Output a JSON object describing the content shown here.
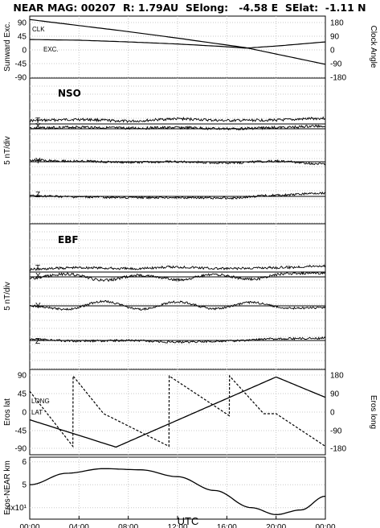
{
  "title": "NEAR MAG: 00207  R: 1.79AU  SElong:   -4.58 E  SElat:  -1.11 N",
  "x_axis": {
    "label": "UTC",
    "ticks": [
      "00:00",
      "04:00",
      "08:00",
      "12:00",
      "16:00",
      "20:00",
      "00:00"
    ]
  },
  "chart_data": [
    {
      "type": "line",
      "panel": "angles",
      "ylabel_left": "Sunward Exc.",
      "ylabel_right": "Clock Angle",
      "yticks_left": [
        "90",
        "45",
        "0",
        "-45",
        "-90"
      ],
      "yticks_right": [
        "180",
        "90",
        "0",
        "-90",
        "-180"
      ],
      "ylim_left": [
        -90,
        90
      ],
      "ylim_right": [
        -180,
        180
      ],
      "grid": true,
      "series": [
        {
          "name": "CLK",
          "axis": "right",
          "x": [
            0,
            4,
            8,
            12,
            16,
            17.5,
            20,
            24
          ],
          "values": [
            160,
            125,
            90,
            52,
            12,
            -3,
            -40,
            -100
          ]
        },
        {
          "name": "EXC.",
          "axis": "left",
          "x": [
            0,
            4,
            8,
            12,
            16,
            17.5,
            20,
            24
          ],
          "values": [
            22,
            20,
            15,
            9,
            1,
            -3,
            3,
            15
          ]
        }
      ]
    },
    {
      "type": "line",
      "panel": "NSO",
      "title": "NSO",
      "ylabel": "5 nT/div",
      "grid": true,
      "series": [
        {
          "name": "T",
          "x": [
            0,
            4,
            8,
            12,
            16,
            20,
            24
          ],
          "values": [
            0.6,
            0.8,
            0.5,
            0.9,
            0.6,
            0.7,
            1.0
          ]
        },
        {
          "name": "X",
          "x": [
            0,
            4,
            8,
            12,
            16,
            20,
            24
          ],
          "values": [
            0.1,
            0.3,
            0.1,
            0.2,
            0.0,
            0.2,
            0.5
          ]
        },
        {
          "name": "Y",
          "x": [
            0,
            4,
            8,
            12,
            16,
            20,
            24
          ],
          "values": [
            0.3,
            0.1,
            -0.1,
            0.0,
            -0.2,
            0.1,
            -0.4
          ]
        },
        {
          "name": "Z",
          "x": [
            0,
            4,
            8,
            12,
            16,
            20,
            24
          ],
          "values": [
            0.1,
            -0.1,
            -0.2,
            -0.2,
            -0.3,
            0.2,
            0.6
          ]
        }
      ]
    },
    {
      "type": "line",
      "panel": "EBF",
      "title": "EBF",
      "ylabel": "5 nT/div",
      "grid": true,
      "series": [
        {
          "name": "T",
          "x": [
            0,
            4,
            8,
            12,
            16,
            20,
            24
          ],
          "values": [
            0.5,
            0.8,
            0.6,
            0.9,
            0.6,
            0.8,
            1.1
          ]
        },
        {
          "name": "X",
          "x": [
            0,
            3,
            6,
            9,
            12,
            15,
            18,
            21,
            24
          ],
          "values": [
            -0.2,
            0.5,
            -0.6,
            0.3,
            -0.5,
            0.4,
            -0.4,
            0.6,
            0.7
          ]
        },
        {
          "name": "Y",
          "x": [
            0,
            3,
            6,
            9,
            12,
            15,
            18,
            21,
            24
          ],
          "values": [
            0.0,
            -0.6,
            0.8,
            -0.6,
            0.7,
            -0.5,
            0.6,
            -0.4,
            -0.3
          ]
        },
        {
          "name": "Z",
          "x": [
            0,
            4,
            8,
            12,
            16,
            20,
            24
          ],
          "values": [
            0.2,
            -0.1,
            0.0,
            -0.3,
            -0.1,
            0.3,
            0.4
          ]
        }
      ]
    },
    {
      "type": "line",
      "panel": "eros_coords",
      "ylabel_left": "Eros lat",
      "ylabel_right": "Eros long",
      "yticks_left": [
        "90",
        "45",
        "0",
        "-45",
        "-90"
      ],
      "yticks_right": [
        "180",
        "90",
        "0",
        "-90",
        "-180"
      ],
      "ylim_left": [
        -90,
        90
      ],
      "ylim_right": [
        -180,
        180
      ],
      "grid": true,
      "series": [
        {
          "name": "LAT",
          "axis": "left",
          "x": [
            0,
            7,
            20,
            24
          ],
          "values": [
            -20,
            -87,
            85,
            35
          ]
        },
        {
          "name": "LONG",
          "axis": "right",
          "x": [
            0,
            3.5,
            3.52,
            6,
            7,
            11.3,
            11.32,
            16.2,
            16.22,
            19,
            20,
            24
          ],
          "values": [
            100,
            -170,
            175,
            -10,
            -40,
            -170,
            175,
            -20,
            175,
            -10,
            -10,
            -170
          ]
        }
      ]
    },
    {
      "type": "line",
      "panel": "distance",
      "ylabel": "Eros-NEAR km",
      "yticks": [
        "6",
        "5",
        "4x10¹"
      ],
      "grid": true,
      "series": [
        {
          "name": "distance",
          "x": [
            0,
            3,
            6,
            9,
            12,
            15,
            18,
            20,
            22,
            24
          ],
          "values": [
            50,
            55,
            57,
            56.5,
            53.5,
            47.5,
            40,
            37,
            39,
            45
          ]
        }
      ]
    }
  ]
}
